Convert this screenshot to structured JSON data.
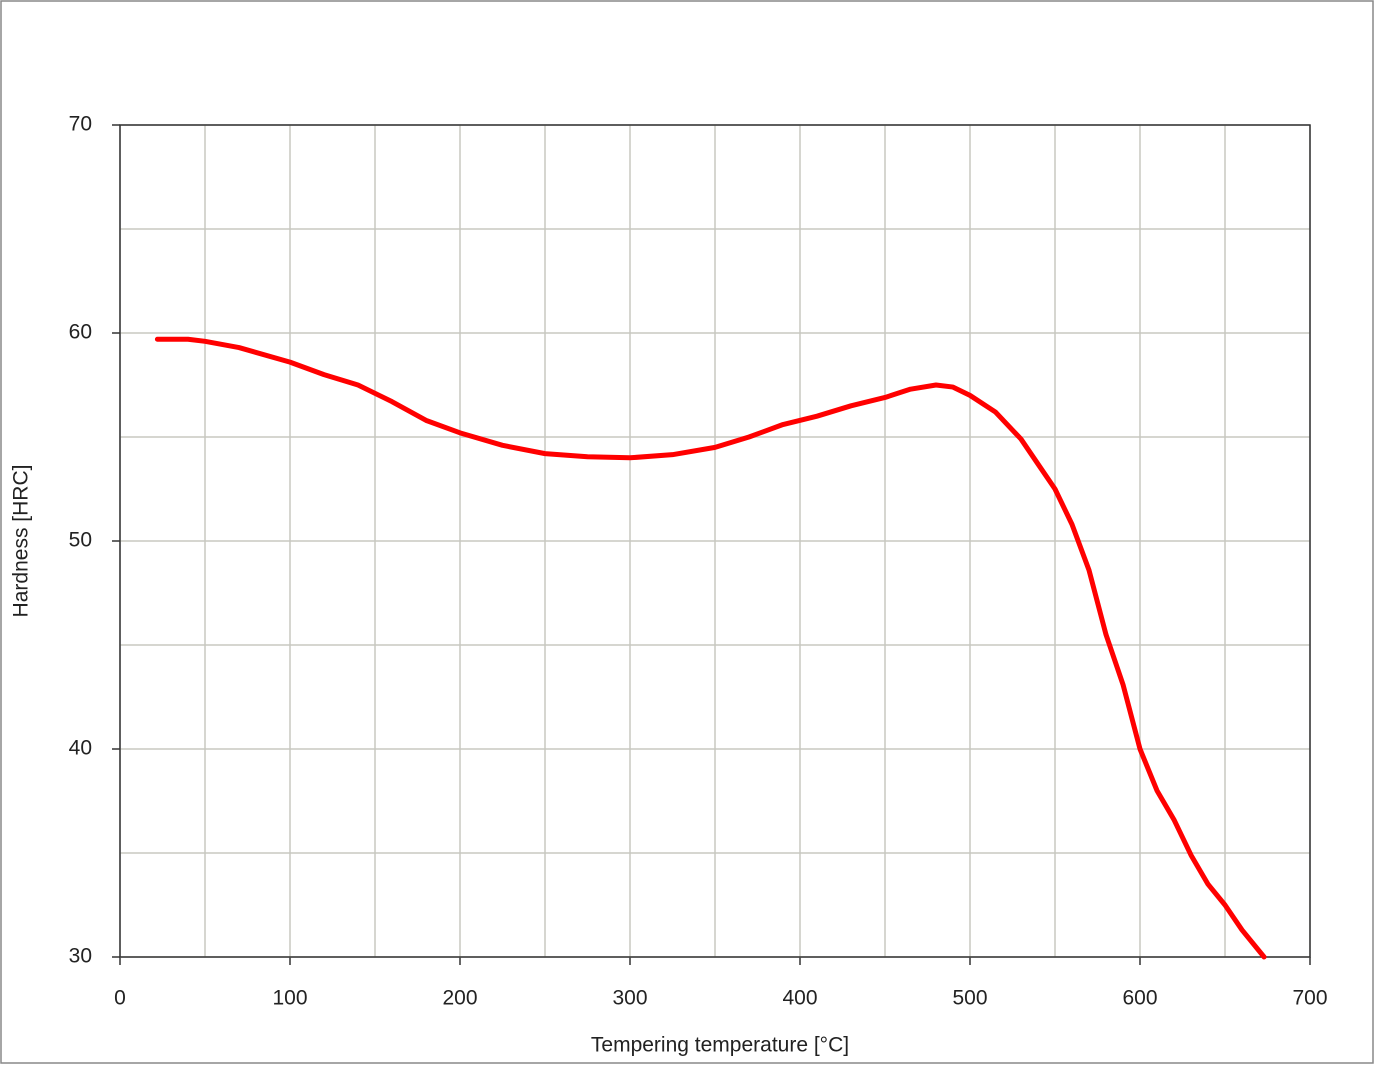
{
  "chart_data": {
    "type": "line",
    "x_label": "Tempering temperature [°C]",
    "y_label": "Hardness [HRC]",
    "x": [
      22,
      40,
      50,
      70,
      100,
      120,
      140,
      160,
      180,
      200,
      225,
      250,
      275,
      300,
      325,
      350,
      370,
      390,
      410,
      430,
      450,
      465,
      480,
      490,
      500,
      515,
      530,
      540,
      550,
      560,
      570,
      580,
      590,
      600,
      610,
      620,
      630,
      640,
      650,
      660,
      673
    ],
    "values": [
      59.7,
      59.7,
      59.6,
      59.3,
      58.6,
      58.0,
      57.5,
      56.7,
      55.8,
      55.2,
      54.6,
      54.2,
      54.05,
      54.0,
      54.15,
      54.5,
      55.0,
      55.6,
      56.0,
      56.5,
      56.9,
      57.3,
      57.5,
      57.4,
      57.0,
      56.2,
      54.9,
      53.7,
      52.5,
      50.8,
      48.6,
      45.5,
      43.1,
      40.0,
      38.0,
      36.6,
      34.9,
      33.5,
      32.5,
      31.3,
      30.0
    ],
    "color": "#ff0000",
    "xlim": [
      0,
      700
    ],
    "xticks": [
      0,
      100,
      200,
      300,
      400,
      500,
      600,
      700
    ],
    "x_minor_grid": [
      50,
      150,
      250,
      350,
      450,
      550,
      650
    ],
    "ylim": [
      30,
      70
    ],
    "yticks": [
      30,
      40,
      50,
      60,
      70
    ],
    "y_minor_grid": [
      35,
      45,
      55,
      65
    ],
    "grid": true
  }
}
